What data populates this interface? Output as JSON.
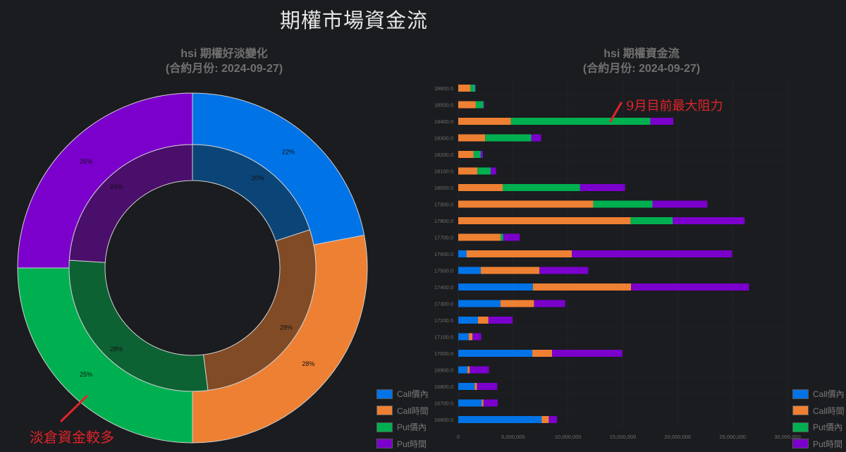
{
  "page": {
    "title": "期權市場資金流"
  },
  "colors": {
    "background": "#1b1c1f",
    "call_itm": "#0073e6",
    "call_time": "#ee8033",
    "put_itm": "#00b050",
    "put_time": "#7b00cc",
    "call_itm_inner": "#0b4577",
    "call_time_inner": "#814b25",
    "put_itm_inner": "#0c6232",
    "put_time_inner": "#4a0e6b",
    "annotation": "#e0242a"
  },
  "left_chart": {
    "title_line1": "hsi 期權好淡變化",
    "title_line2": "(合約月份: 2024-09-27)"
  },
  "right_chart": {
    "title_line1": "hsi 期權資金流",
    "title_line2": "(合約月份: 2024-09-27)"
  },
  "legend": {
    "items": [
      {
        "label": "Call價內",
        "color_key": "call_itm"
      },
      {
        "label": "Call時間",
        "color_key": "call_time"
      },
      {
        "label": "Put價內",
        "color_key": "put_itm"
      },
      {
        "label": "Put時間",
        "color_key": "put_time"
      }
    ]
  },
  "annotations": {
    "left": "淡倉資金較多",
    "right": "9月目前最大阻力"
  },
  "chart_data": [
    {
      "type": "pie",
      "subtype": "nested-donut",
      "title": "hsi 期權好淡變化 (合約月份: 2024-09-27)",
      "categories": [
        "Call價內",
        "Call時間",
        "Put價內",
        "Put時間"
      ],
      "series": [
        {
          "name": "outer",
          "values": [
            22,
            28,
            25,
            25
          ],
          "unit": "%"
        },
        {
          "name": "inner",
          "values": [
            20,
            28,
            28,
            24
          ],
          "unit": "%"
        }
      ],
      "legend_position": "bottom-right"
    },
    {
      "type": "bar",
      "orientation": "horizontal",
      "stacked": true,
      "title": "hsi 期權資金流 (合約月份: 2024-09-27)",
      "xlabel": "",
      "ylabel": "",
      "xlim": [
        0,
        30000000
      ],
      "x_ticks": [
        "0",
        "5,000,000",
        "10,000,000",
        "15,000,000",
        "20,000,000",
        "25,000,000",
        "30,000,000"
      ],
      "grid": true,
      "legend_position": "bottom-right",
      "categories": [
        "18600.0",
        "18500.0",
        "18400.0",
        "18300.0",
        "18200.0",
        "18100.0",
        "18000.0",
        "17900.0",
        "17800.0",
        "17700.0",
        "17600.0",
        "17500.0",
        "17400.0",
        "17300.0",
        "17200.0",
        "17100.0",
        "17000.0",
        "16900.0",
        "16800.0",
        "16700.0",
        "16600.0"
      ],
      "series": [
        {
          "name": "Call價內",
          "values": [
            0,
            0,
            0,
            0,
            0,
            0,
            0,
            0,
            0,
            0,
            750000,
            2050000,
            6800000,
            3850000,
            1800000,
            950000,
            6750000,
            850000,
            1500000,
            2150000,
            7600000
          ]
        },
        {
          "name": "Call時間",
          "values": [
            1100000,
            1600000,
            4800000,
            2450000,
            1400000,
            1750000,
            4050000,
            12300000,
            15700000,
            3850000,
            9600000,
            5350000,
            8950000,
            3050000,
            950000,
            350000,
            1800000,
            200000,
            200000,
            150000,
            650000
          ]
        },
        {
          "name": "Put價內",
          "values": [
            450000,
            700000,
            12700000,
            4200000,
            650000,
            1200000,
            7050000,
            5400000,
            3850000,
            250000,
            0,
            0,
            0,
            0,
            0,
            0,
            0,
            0,
            0,
            0,
            0
          ]
        },
        {
          "name": "Put時間",
          "values": [
            50000,
            70000,
            2100000,
            900000,
            200000,
            500000,
            4100000,
            5000000,
            6550000,
            1500000,
            14600000,
            4450000,
            10750000,
            2850000,
            2200000,
            800000,
            6400000,
            1750000,
            1850000,
            1300000,
            750000
          ]
        }
      ]
    }
  ]
}
